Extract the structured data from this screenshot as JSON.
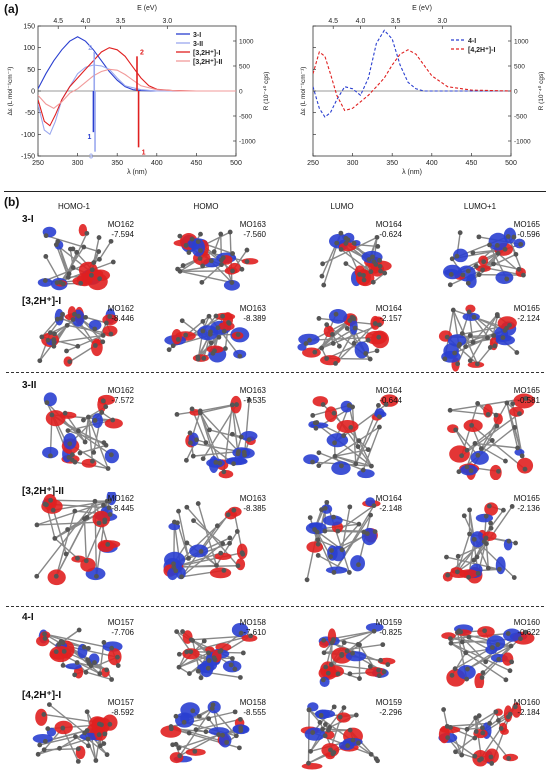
{
  "panel_a_label": "(a)",
  "panel_b_label": "(b)",
  "colors": {
    "blue": "#2a3fd0",
    "lightblue": "#9aa8ee",
    "red": "#e02020",
    "lightred": "#f19a9a"
  },
  "chart_data": [
    {
      "type": "line",
      "xlabel": "λ (nm)",
      "ylabel_left": "Δε (L mol⁻¹cm⁻¹)",
      "ylabel_right": "R (10⁻⁴⁰ cgs)",
      "xlabel_top": "E (eV)",
      "xlim": [
        250,
        500
      ],
      "ylim": [
        -150,
        150
      ],
      "ylim_right": [
        -1300,
        1300
      ],
      "x_ticks": [
        "250",
        "300",
        "350",
        "400",
        "450",
        "500"
      ],
      "y_ticks": [
        "-150",
        "-100",
        "-50",
        "0",
        "50",
        "100",
        "150"
      ],
      "y2_ticks": [
        "-1000",
        "-500",
        "0",
        "500",
        "1000"
      ],
      "top_ticks": [
        "4.5",
        "4.0",
        "3.5",
        "3.0"
      ],
      "top_tick_ev": [
        4.5,
        4.0,
        3.5,
        3.0
      ],
      "legend": [
        "3-I",
        "3-II",
        "[3,2H⁺]-I",
        "[3,2H⁺]-II"
      ],
      "series": [
        {
          "name": "3-I",
          "style": "solid",
          "color": "#2a3fd0",
          "x": [
            250,
            260,
            270,
            280,
            290,
            300,
            310,
            320,
            330,
            340,
            350,
            360,
            370,
            380,
            400,
            430,
            460,
            500
          ],
          "values": [
            5,
            40,
            70,
            95,
            115,
            125,
            115,
            95,
            70,
            45,
            25,
            10,
            3,
            1,
            0,
            0,
            0,
            0
          ]
        },
        {
          "name": "3-II",
          "style": "solid",
          "color": "#9aa8ee",
          "x": [
            250,
            258,
            265,
            272,
            280,
            290,
            300,
            310,
            320,
            330,
            340,
            350,
            360,
            380,
            400,
            500
          ],
          "values": [
            -30,
            -90,
            -100,
            -70,
            -20,
            10,
            40,
            55,
            60,
            58,
            50,
            30,
            12,
            3,
            0,
            0
          ]
        },
        {
          "name": "[3,2H⁺]-I",
          "style": "solid",
          "color": "#e02020",
          "x": [
            250,
            258,
            265,
            272,
            280,
            290,
            300,
            310,
            320,
            330,
            340,
            350,
            360,
            370,
            380,
            390,
            400,
            420,
            450,
            500
          ],
          "values": [
            -20,
            -70,
            -80,
            -55,
            -20,
            10,
            30,
            50,
            70,
            90,
            100,
            95,
            80,
            55,
            30,
            12,
            4,
            1,
            0,
            0
          ]
        },
        {
          "name": "[3,2H⁺]-II",
          "style": "solid",
          "color": "#f19a9a",
          "x": [
            250,
            260,
            270,
            280,
            290,
            300,
            310,
            320,
            330,
            340,
            350,
            360,
            370,
            380,
            400,
            430,
            500
          ],
          "values": [
            -10,
            -30,
            -40,
            -25,
            -5,
            5,
            20,
            35,
            45,
            50,
            48,
            38,
            25,
            12,
            3,
            0,
            0
          ]
        }
      ],
      "sticks": [
        {
          "label": "1",
          "x": 320,
          "value": -95,
          "color": "#2a3fd0"
        },
        {
          "label": "2",
          "x": 321,
          "value": 90,
          "color": "#9aa8ee"
        },
        {
          "label": "3",
          "x": 322,
          "value": -140,
          "color": "#9aa8ee"
        },
        {
          "label": "2",
          "x": 375,
          "value": 80,
          "color": "#e02020"
        },
        {
          "label": "1",
          "x": 377,
          "value": -130,
          "color": "#e02020"
        }
      ]
    },
    {
      "type": "line",
      "xlabel": "λ (nm)",
      "ylabel_left": "Δε (L mol⁻¹cm⁻¹)",
      "ylabel_right": "R (10⁻⁴⁰ cgs)",
      "xlabel_top": "E (eV)",
      "xlim": [
        250,
        500
      ],
      "ylim": [
        -150,
        150
      ],
      "ylim_right": [
        -1300,
        1300
      ],
      "x_ticks": [
        "250",
        "300",
        "350",
        "400",
        "450",
        "500"
      ],
      "y2_ticks": [
        "-1000",
        "-500",
        "0",
        "500",
        "1000"
      ],
      "top_ticks": [
        "4.5",
        "4.0",
        "3.5",
        "3.0"
      ],
      "top_tick_ev": [
        4.5,
        4.0,
        3.5,
        3.0
      ],
      "legend": [
        "4-I",
        "[4,2H⁺]-I"
      ],
      "series": [
        {
          "name": "4-I",
          "style": "dashed",
          "color": "#2a3fd0",
          "x": [
            250,
            258,
            265,
            272,
            280,
            290,
            300,
            310,
            320,
            330,
            340,
            350,
            360,
            370,
            380,
            390,
            400,
            420,
            450,
            500
          ],
          "values": [
            10,
            -40,
            -60,
            -50,
            -20,
            10,
            5,
            -10,
            30,
            110,
            140,
            120,
            60,
            20,
            5,
            0,
            0,
            0,
            0,
            0
          ]
        },
        {
          "name": "[4,2H⁺]-I",
          "style": "dashed",
          "color": "#e02020",
          "x": [
            250,
            258,
            265,
            272,
            280,
            290,
            300,
            310,
            320,
            330,
            340,
            350,
            360,
            370,
            380,
            390,
            400,
            420,
            450,
            500
          ],
          "values": [
            40,
            90,
            80,
            40,
            -10,
            -45,
            -40,
            -25,
            -10,
            10,
            30,
            60,
            85,
            95,
            85,
            60,
            35,
            10,
            2,
            0
          ]
        }
      ]
    }
  ],
  "orbital_grid": {
    "column_headers": [
      "HOMO-1",
      "HOMO",
      "LUMO",
      "LUMO+1"
    ],
    "groups": [
      {
        "rows": [
          {
            "label": "3-I",
            "cells": [
              {
                "mo": "MO162",
                "e": "-7.594"
              },
              {
                "mo": "MO163",
                "e": "-7.560"
              },
              {
                "mo": "MO164",
                "e": "-0.624"
              },
              {
                "mo": "MO165",
                "e": "-0.596"
              }
            ]
          },
          {
            "label": "[3,2H⁺]-I",
            "cells": [
              {
                "mo": "MO162",
                "e": "-8.446"
              },
              {
                "mo": "MO163",
                "e": "-8.389"
              },
              {
                "mo": "MO164",
                "e": "-2.157"
              },
              {
                "mo": "MO165",
                "e": "-2.124"
              }
            ]
          }
        ]
      },
      {
        "rows": [
          {
            "label": "3-II",
            "cells": [
              {
                "mo": "MO162",
                "e": "-7.572"
              },
              {
                "mo": "MO163",
                "e": "-7.535"
              },
              {
                "mo": "MO164",
                "e": "-0.644"
              },
              {
                "mo": "MO165",
                "e": "-0.581"
              }
            ]
          },
          {
            "label": "[3,2H⁺]-II",
            "cells": [
              {
                "mo": "MO162",
                "e": "-8.445"
              },
              {
                "mo": "MO163",
                "e": "-8.385"
              },
              {
                "mo": "MO164",
                "e": "-2.148"
              },
              {
                "mo": "MO165",
                "e": "-2.136"
              }
            ]
          }
        ]
      },
      {
        "rows": [
          {
            "label": "4-I",
            "cells": [
              {
                "mo": "MO157",
                "e": "-7.706"
              },
              {
                "mo": "MO158",
                "e": "-7.610"
              },
              {
                "mo": "MO159",
                "e": "-0.825"
              },
              {
                "mo": "MO160",
                "e": "-0.622"
              }
            ]
          },
          {
            "label": "[4,2H⁺]-I",
            "cells": [
              {
                "mo": "MO157",
                "e": "-8.592"
              },
              {
                "mo": "MO158",
                "e": "-8.555"
              },
              {
                "mo": "MO159",
                "e": "-2.296"
              },
              {
                "mo": "MO160",
                "e": "-2.184"
              }
            ]
          }
        ]
      }
    ]
  }
}
